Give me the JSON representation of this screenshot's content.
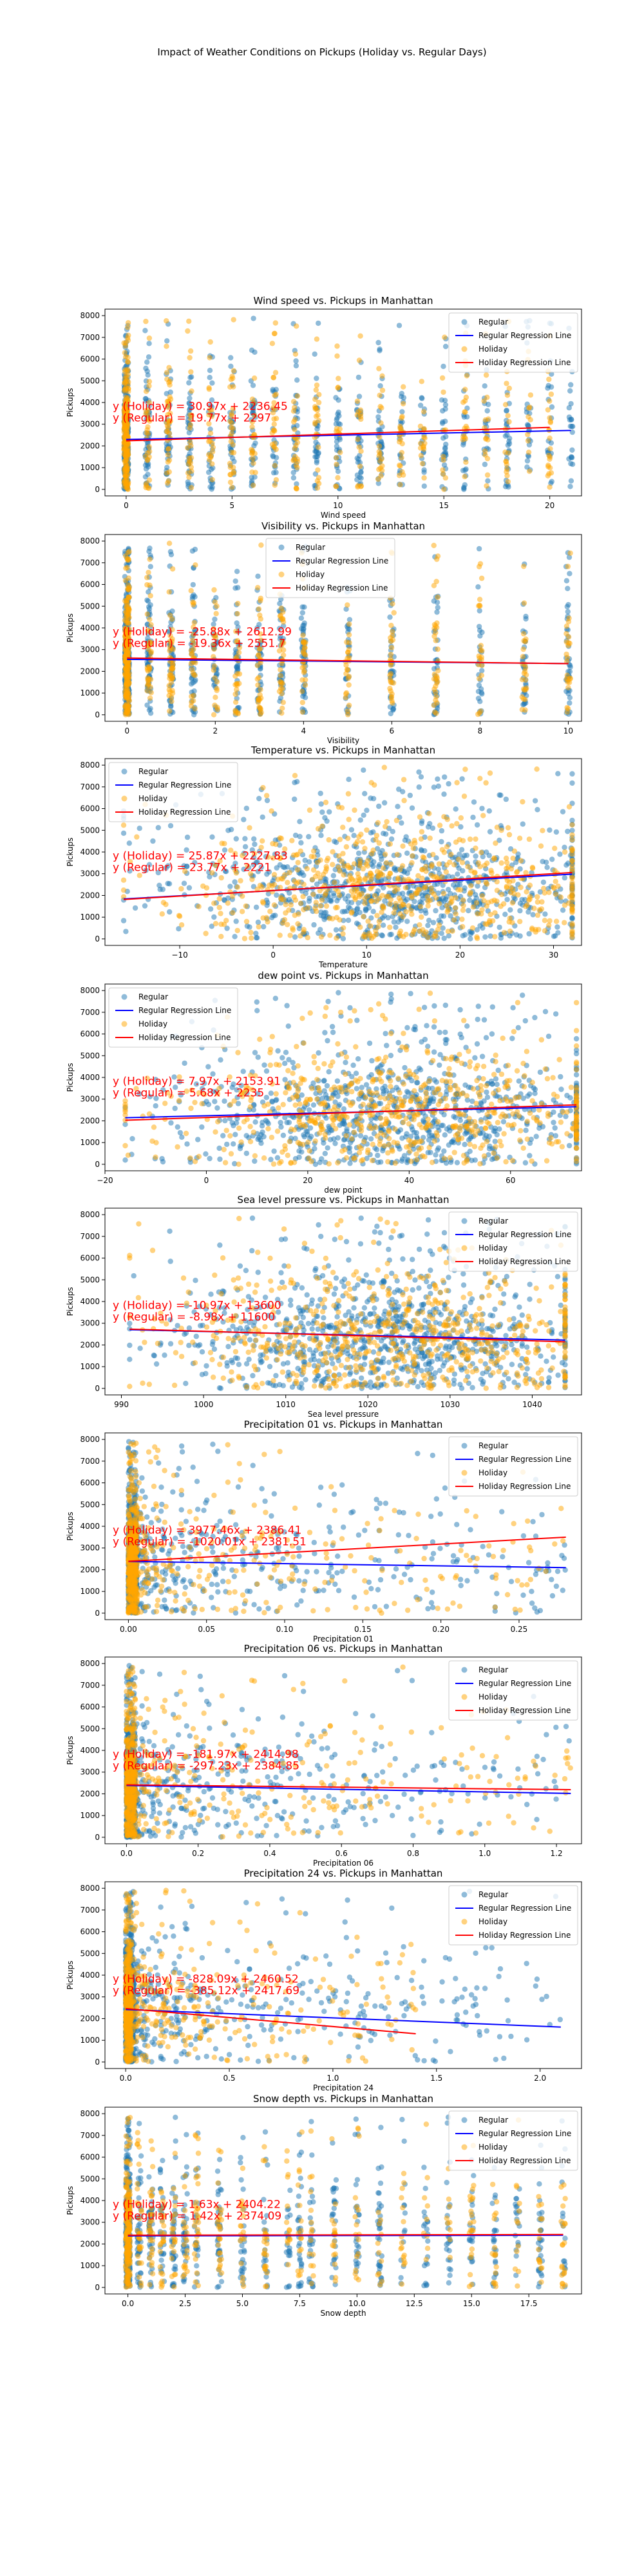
{
  "figure": {
    "title": "Impact of Weather Conditions on Pickups (Holiday vs. Regular Days)"
  },
  "colors": {
    "regular": "#1f77b4",
    "holiday": "#ffa500",
    "regular_line": "#0000ff",
    "holiday_line": "#ff0000",
    "equation": "#ff0000"
  },
  "legend_labels": {
    "regular": "Regular",
    "regular_line": "Regular Regression Line",
    "holiday": "Holiday",
    "holiday_line": "Holiday Regression Line"
  },
  "chart_data": [
    {
      "type": "scatter",
      "title": "Wind speed vs. Pickups in Manhattan",
      "xlabel": "Wind speed",
      "ylabel": "Pickups",
      "xlim": [
        -1,
        21.5
      ],
      "ylim": [
        -300,
        8300
      ],
      "xticks": [
        0,
        5,
        10,
        15,
        20
      ],
      "yticks": [
        0,
        1000,
        2000,
        3000,
        4000,
        5000,
        6000,
        7000,
        8000
      ],
      "legend_position": "top-right",
      "x_range": [
        0,
        21
      ],
      "x_mode": "discrete",
      "x_values": [
        0,
        1,
        2,
        3,
        4,
        5,
        6,
        7,
        8,
        9,
        10,
        11,
        12,
        13,
        14,
        15,
        16,
        17,
        18,
        19,
        20,
        21
      ],
      "holiday_x_max": 20,
      "regular_fit": {
        "slope": 19.77,
        "intercept": 2297
      },
      "holiday_fit": {
        "slope": 30.97,
        "intercept": 2236.45
      },
      "equations": {
        "holiday": "y (Holiday) = 30.97x + 2236.45",
        "regular": "y (Regular) = 19.77x + 2297"
      },
      "grid": false
    },
    {
      "type": "scatter",
      "title": "Visibility vs. Pickups in Manhattan",
      "xlabel": "Visibility",
      "ylabel": "Pickups",
      "xlim": [
        -0.5,
        10.3
      ],
      "ylim": [
        -300,
        8300
      ],
      "xticks": [
        0,
        2,
        4,
        6,
        8,
        10
      ],
      "yticks": [
        0,
        1000,
        2000,
        3000,
        4000,
        5000,
        6000,
        7000,
        8000
      ],
      "legend_position": "top-center",
      "x_range": [
        0,
        10
      ],
      "x_mode": "discrete",
      "x_values": [
        0,
        0.5,
        1,
        1.5,
        2,
        2.5,
        3,
        3.5,
        4,
        5,
        6,
        7,
        8,
        9,
        10
      ],
      "holiday_x_max": 10,
      "regular_fit": {
        "slope": -19.36,
        "intercept": 2551.7
      },
      "holiday_fit": {
        "slope": -25.88,
        "intercept": 2612.99
      },
      "equations": {
        "holiday": "y (Holiday) = -25.88x + 2612.99",
        "regular": "y (Regular) = -19.36x + 2551.7"
      },
      "grid": false
    },
    {
      "type": "scatter",
      "title": "Temperature vs. Pickups in Manhattan",
      "xlabel": "Temperature",
      "ylabel": "Pickups",
      "xlim": [
        -18,
        33
      ],
      "ylim": [
        -300,
        8300
      ],
      "xticks": [
        -10,
        0,
        10,
        20,
        30
      ],
      "yticks": [
        0,
        1000,
        2000,
        3000,
        4000,
        5000,
        6000,
        7000,
        8000
      ],
      "legend_position": "top-left",
      "x_range": [
        -16,
        32
      ],
      "x_mode": "continuous",
      "holiday_x_max": 32,
      "regular_fit": {
        "slope": 23.77,
        "intercept": 2221
      },
      "holiday_fit": {
        "slope": 25.87,
        "intercept": 2227.83
      },
      "equations": {
        "holiday": "y (Holiday) = 25.87x + 2227.83",
        "regular": "y (Regular) = 23.77x + 2221"
      },
      "grid": false
    },
    {
      "type": "scatter",
      "title": "dew point vs. Pickups in Manhattan",
      "xlabel": "dew point",
      "ylabel": "Pickups",
      "xlim": [
        -20,
        74
      ],
      "ylim": [
        -300,
        8300
      ],
      "xticks": [
        -20,
        0,
        20,
        40,
        60
      ],
      "yticks": [
        0,
        1000,
        2000,
        3000,
        4000,
        5000,
        6000,
        7000,
        8000
      ],
      "legend_position": "top-left",
      "x_range": [
        -16,
        73
      ],
      "x_mode": "continuous",
      "holiday_x_max": 73,
      "regular_fit": {
        "slope": 5.68,
        "intercept": 2235
      },
      "holiday_fit": {
        "slope": 7.97,
        "intercept": 2153.91
      },
      "equations": {
        "holiday": "y (Holiday) = 7.97x + 2153.91",
        "regular": "y (Regular) = 5.68x + 2235"
      },
      "grid": false
    },
    {
      "type": "scatter",
      "title": "Sea level pressure vs. Pickups in Manhattan",
      "xlabel": "Sea level pressure",
      "ylabel": "Pickups",
      "xlim": [
        988,
        1046
      ],
      "ylim": [
        -300,
        8300
      ],
      "xticks": [
        990,
        1000,
        1010,
        1020,
        1030,
        1040
      ],
      "yticks": [
        0,
        1000,
        2000,
        3000,
        4000,
        5000,
        6000,
        7000,
        8000
      ],
      "legend_position": "top-right",
      "x_range": [
        991,
        1044
      ],
      "x_mode": "continuous",
      "holiday_x_max": 1044,
      "regular_fit": {
        "slope": -8.98,
        "intercept": 11600
      },
      "holiday_fit": {
        "slope": -10.97,
        "intercept": 13600
      },
      "equations": {
        "holiday": "y (Holiday) = -10.97x + 13600",
        "regular": "y (Regular) = -8.98x + 11600"
      },
      "grid": false
    },
    {
      "type": "scatter",
      "title": "Precipitation 01 vs. Pickups in Manhattan",
      "xlabel": "Precipitation 01",
      "ylabel": "Pickups",
      "xlim": [
        -0.015,
        0.29
      ],
      "ylim": [
        -300,
        8300
      ],
      "xticks": [
        0,
        0.05,
        0.1,
        0.15,
        0.2,
        0.25
      ],
      "yticks": [
        0,
        1000,
        2000,
        3000,
        4000,
        5000,
        6000,
        7000,
        8000
      ],
      "legend_position": "top-right",
      "x_range": [
        0,
        0.28
      ],
      "x_mode": "skewed",
      "holiday_x_max": 0.28,
      "regular_fit": {
        "slope": -1020.01,
        "intercept": 2381.51
      },
      "holiday_fit": {
        "slope": 3977.46,
        "intercept": 2386.41
      },
      "equations": {
        "holiday": "y (Holiday) = 3977.46x + 2386.41",
        "regular": "y (Regular) = -1020.01x + 2381.51"
      },
      "grid": false
    },
    {
      "type": "scatter",
      "title": "Precipitation 06 vs. Pickups in Manhattan",
      "xlabel": "Precipitation 06",
      "ylabel": "Pickups",
      "xlim": [
        -0.06,
        1.27
      ],
      "ylim": [
        -300,
        8300
      ],
      "xticks": [
        0,
        0.2,
        0.4,
        0.6,
        0.8,
        1,
        1.2
      ],
      "yticks": [
        0,
        1000,
        2000,
        3000,
        4000,
        5000,
        6000,
        7000,
        8000
      ],
      "legend_position": "top-right",
      "x_range": [
        0,
        1.24
      ],
      "x_mode": "skewed",
      "holiday_x_max": 1.24,
      "regular_fit": {
        "slope": -297.23,
        "intercept": 2384.85
      },
      "holiday_fit": {
        "slope": -181.97,
        "intercept": 2414.98
      },
      "equations": {
        "holiday": "y (Holiday) = -181.97x + 2414.98",
        "regular": "y (Regular) = -297.23x + 2384.85"
      },
      "grid": false
    },
    {
      "type": "scatter",
      "title": "Precipitation 24 vs. Pickups in Manhattan",
      "xlabel": "Precipitation 24",
      "ylabel": "Pickups",
      "xlim": [
        -0.1,
        2.2
      ],
      "ylim": [
        -300,
        8300
      ],
      "xticks": [
        0,
        0.5,
        1,
        1.5,
        2
      ],
      "yticks": [
        0,
        1000,
        2000,
        3000,
        4000,
        5000,
        6000,
        7000,
        8000
      ],
      "legend_position": "top-right",
      "x_range": [
        0,
        2.1
      ],
      "x_mode": "skewed",
      "holiday_x_max": 1.4,
      "regular_fit": {
        "slope": -385.12,
        "intercept": 2417.69
      },
      "holiday_fit": {
        "slope": -828.09,
        "intercept": 2460.52
      },
      "equations": {
        "holiday": "y (Holiday) = -828.09x + 2460.52",
        "regular": "y (Regular) = -385.12x + 2417.69"
      },
      "grid": false
    },
    {
      "type": "scatter",
      "title": "Snow depth vs. Pickups in Manhattan",
      "xlabel": "Snow depth",
      "ylabel": "Pickups",
      "xlim": [
        -1,
        19.8
      ],
      "ylim": [
        -300,
        8300
      ],
      "xticks": [
        0,
        2.5,
        5,
        7.5,
        10,
        12.5,
        15,
        17.5
      ],
      "yticks": [
        0,
        1000,
        2000,
        3000,
        4000,
        5000,
        6000,
        7000,
        8000
      ],
      "legend_position": "top-right",
      "x_range": [
        0,
        19
      ],
      "x_mode": "discrete",
      "x_values": [
        0,
        0.5,
        1,
        1.5,
        2,
        2.5,
        3,
        4,
        5,
        6,
        7,
        7.5,
        8,
        9,
        10,
        11,
        12,
        13,
        14,
        15,
        16,
        17,
        18,
        19
      ],
      "holiday_x_max": 19,
      "regular_fit": {
        "slope": 1.42,
        "intercept": 2374.09
      },
      "holiday_fit": {
        "slope": 1.63,
        "intercept": 2404.22
      },
      "equations": {
        "holiday": "y (Holiday) = 1.63x + 2404.22",
        "regular": "y (Regular) = 1.42x + 2374.09"
      },
      "grid": false
    }
  ]
}
